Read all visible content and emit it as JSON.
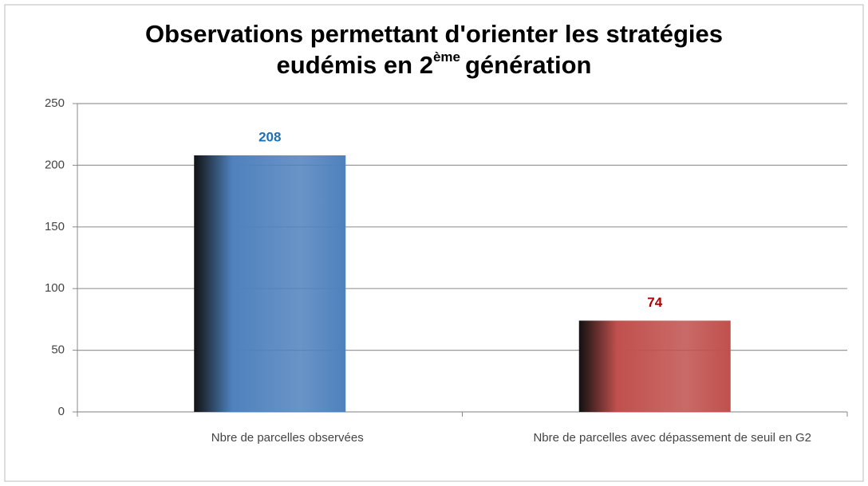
{
  "chart_data": {
    "type": "bar",
    "title": [
      "Observations permettant d'orienter les stratégies",
      "eudémis en 2",
      "ème",
      "génération"
    ],
    "categories": [
      "Nbre de parcelles observées",
      "Nbre de parcelles avec dépassement de seuil en G2"
    ],
    "values": [
      208,
      74
    ],
    "colors": [
      "#4f81bd",
      "#c0504d"
    ],
    "label_colors": [
      "#1f6fb5",
      "#b00000"
    ],
    "ylim": [
      0,
      250
    ],
    "yticks": [
      0,
      50,
      100,
      150,
      200,
      250
    ],
    "grid": true
  }
}
